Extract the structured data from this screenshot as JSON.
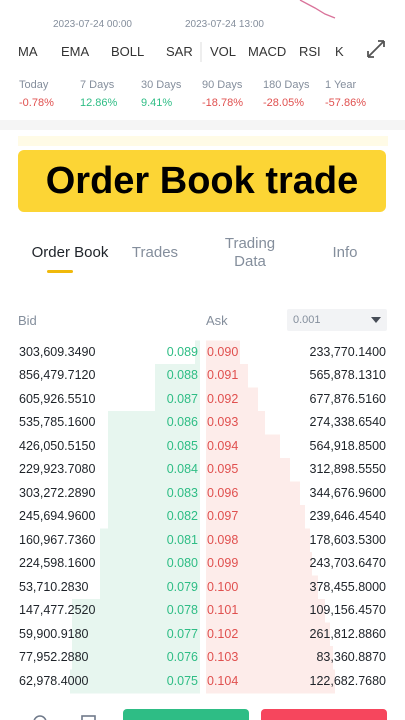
{
  "chart_header": {
    "dates": [
      "2023-07-24 00:00",
      "2023-07-24 13:00"
    ]
  },
  "indicators": [
    "MA",
    "EMA",
    "BOLL",
    "SAR",
    "VOL",
    "MACD",
    "RSI",
    "K"
  ],
  "periods": [
    {
      "label": "Today",
      "change": "-0.78%"
    },
    {
      "label": "7 Days",
      "change": "12.86%"
    },
    {
      "label": "30 Days",
      "change": "9.41%"
    },
    {
      "label": "90 Days",
      "change": "-18.78%"
    },
    {
      "label": "180 Days",
      "change": "-28.05%"
    },
    {
      "label": "1 Year",
      "change": "-57.86%"
    }
  ],
  "banner": "Order Book trade",
  "tabs": [
    "Order Book",
    "Trades",
    "Trading Data",
    "Info"
  ],
  "order_book": {
    "bid_label": "Bid",
    "ask_label": "Ask",
    "precision": "0.001",
    "rows": [
      [
        "303,609.3490",
        "0.089",
        "0.090",
        "233,770.1400"
      ],
      [
        "856,479.7120",
        "0.088",
        "0.091",
        "565,878.1310"
      ],
      [
        "605,926.5510",
        "0.087",
        "0.092",
        "677,876.5160"
      ],
      [
        "535,785.1600",
        "0.086",
        "0.093",
        "274,338.6540"
      ],
      [
        "426,050.5150",
        "0.085",
        "0.094",
        "564,918.8500"
      ],
      [
        "229,923.7080",
        "0.084",
        "0.095",
        "312,898.5550"
      ],
      [
        "303,272.2890",
        "0.083",
        "0.096",
        "344,676.9600"
      ],
      [
        "245,694.9600",
        "0.082",
        "0.097",
        "239,646.4540"
      ],
      [
        "160,967.7360",
        "0.081",
        "0.098",
        "178,603.5300"
      ],
      [
        "224,598.1600",
        "0.080",
        "0.099",
        "243,703.6470"
      ],
      [
        "53,710.2830",
        "0.079",
        "0.100",
        "378,455.8000"
      ],
      [
        "147,477.2520",
        "0.078",
        "0.101",
        "109,156.4570"
      ],
      [
        "59,900.9180",
        "0.077",
        "0.102",
        "261,812.8860"
      ],
      [
        "77,952.2880",
        "0.076",
        "0.103",
        "83,360.8870"
      ],
      [
        "62,978.4000",
        "0.075",
        "0.104",
        "122,682.7680"
      ]
    ]
  }
}
